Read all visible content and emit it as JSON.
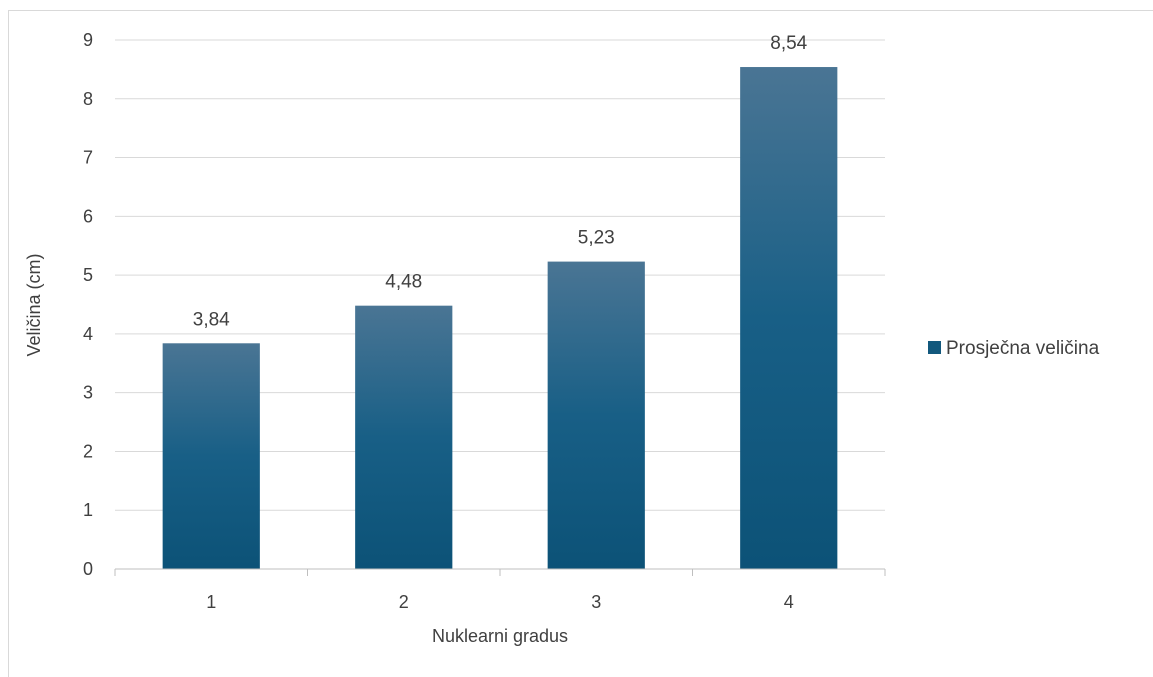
{
  "chart_data": {
    "type": "bar",
    "title": "",
    "xlabel": "Nuklearni gradus",
    "ylabel": "Veličina (cm)",
    "categories": [
      "1",
      "2",
      "3",
      "4"
    ],
    "series": [
      {
        "name": "Prosječna veličina",
        "values": [
          3.84,
          4.48,
          5.23,
          8.54
        ],
        "data_labels": [
          "3,84",
          "4,48",
          "5,23",
          "8,54"
        ]
      }
    ],
    "ylim": [
      0,
      9
    ],
    "yticks": [
      0,
      1,
      2,
      3,
      4,
      5,
      6,
      7,
      8,
      9
    ],
    "grid": true,
    "legend_position": "right",
    "colors": {
      "bar_top": "#4a7594",
      "bar_bottom": "#0c5277",
      "gridline": "#d9d9d9",
      "axis": "#bfbfbf",
      "legend_swatch": "#12587d"
    }
  }
}
